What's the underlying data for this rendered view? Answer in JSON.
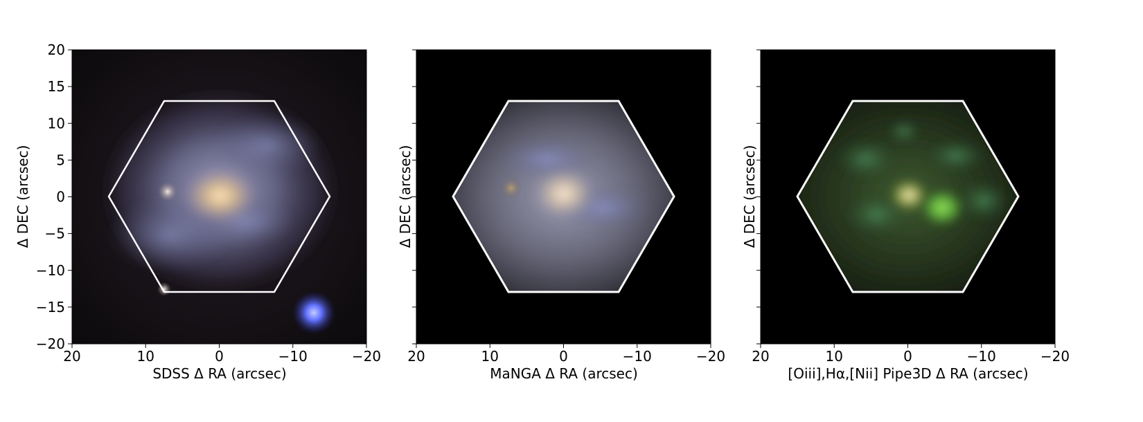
{
  "panels": [
    {
      "xlabel": "SDSS Δ RA (arcsec)",
      "ylabel": "Δ DEC (arcsec)",
      "show_yticklabels": true,
      "image": "sdss-galaxy-image"
    },
    {
      "xlabel": "MaNGA Δ RA (arcsec)",
      "ylabel": "Δ DEC (arcsec)",
      "show_yticklabels": false,
      "image": "manga-galaxy-image"
    },
    {
      "xlabel": "[Oiii],Hα,[Nii] Pipe3D Δ RA (arcsec)",
      "ylabel": "Δ DEC (arcsec)",
      "show_yticklabels": false,
      "image": "pipe3d-emission-line-image"
    }
  ],
  "xticks": [
    {
      "value": 20,
      "label": "20"
    },
    {
      "value": 10,
      "label": "10"
    },
    {
      "value": 0,
      "label": "0"
    },
    {
      "value": -10,
      "label": "−10"
    },
    {
      "value": -20,
      "label": "−20"
    }
  ],
  "yticks": [
    {
      "value": 20,
      "label": "20"
    },
    {
      "value": 15,
      "label": "15"
    },
    {
      "value": 10,
      "label": "10"
    },
    {
      "value": 5,
      "label": "5"
    },
    {
      "value": 0,
      "label": "0"
    },
    {
      "value": -5,
      "label": "−5"
    },
    {
      "value": -10,
      "label": "−10"
    },
    {
      "value": -15,
      "label": "−15"
    },
    {
      "value": -20,
      "label": "−20"
    }
  ],
  "xlim": [
    20,
    -20
  ],
  "ylim": [
    -20,
    20
  ],
  "hexagon_arcsec": [
    [
      15,
      0
    ],
    [
      7.5,
      13
    ],
    [
      -7.5,
      13
    ],
    [
      -15,
      0
    ],
    [
      -7.5,
      -13
    ],
    [
      7.5,
      -13
    ]
  ],
  "colors": {
    "hexagon": "#ffffff",
    "background": "#000000",
    "sdss_core": "#e8c89a",
    "sdss_disk": "#8a90b8",
    "manga_core": "#f0dcbc",
    "pipe3d_green": "#66c84a",
    "star_blue": "#5a6cff"
  }
}
